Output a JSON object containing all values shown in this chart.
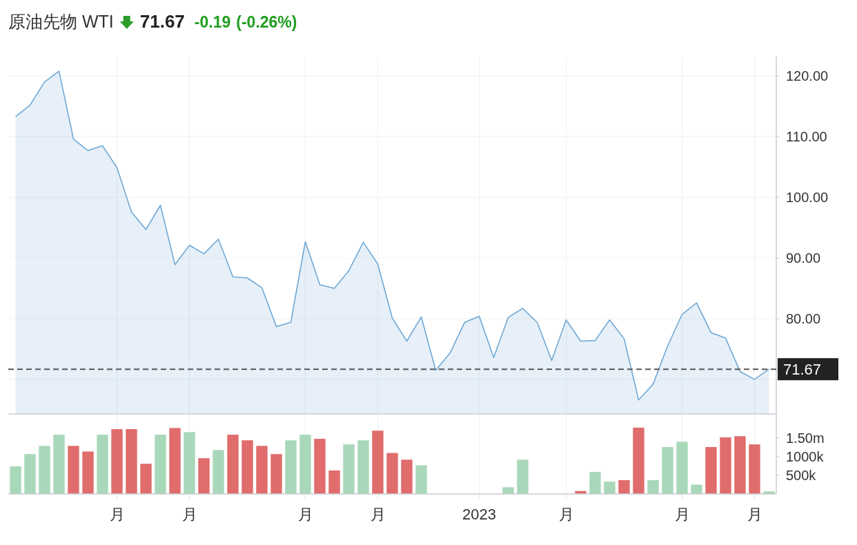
{
  "chart_data": [
    {
      "type": "area",
      "title": "原油先物 WTI",
      "annotations": [
        "71.67",
        "-0.19",
        "(-0.26%)"
      ],
      "categories": [
        null,
        null,
        null,
        null,
        null,
        null,
        null,
        null,
        null,
        null,
        null,
        null,
        null,
        null,
        null,
        null,
        null,
        null,
        null,
        null,
        null,
        null,
        null,
        null,
        null,
        null,
        null,
        null,
        null,
        null,
        null,
        null,
        null,
        null,
        null,
        null,
        null,
        null,
        null,
        null,
        null,
        null,
        null,
        null,
        null,
        null,
        null,
        null,
        null,
        null,
        null,
        null,
        null
      ],
      "values": [
        113.3,
        115.2,
        119.0,
        120.8,
        109.6,
        107.7,
        108.5,
        104.9,
        97.6,
        94.7,
        98.7,
        88.9,
        92.1,
        90.7,
        93.1,
        86.9,
        86.7,
        85.1,
        78.7,
        79.4,
        92.7,
        85.6,
        85.0,
        87.9,
        92.6,
        89.0,
        80.1,
        76.3,
        80.3,
        71.5,
        74.4,
        79.4,
        80.4,
        73.6,
        80.2,
        81.7,
        79.4,
        73.1,
        79.8,
        76.3,
        76.4,
        79.8,
        76.7,
        66.6,
        69.2,
        75.5,
        80.7,
        82.6,
        77.7,
        76.8,
        71.3,
        70.0,
        71.7
      ],
      "color": "#6fa8d6",
      "ylim": [
        64.3,
        123.2
      ],
      "yticks": [
        {
          "value": 70,
          "label": null
        },
        {
          "value": 80,
          "label": "80.00"
        },
        {
          "value": 90,
          "label": "90.00"
        },
        {
          "value": 100,
          "label": "100.00"
        },
        {
          "value": 110,
          "label": "110.00"
        },
        {
          "value": 120,
          "label": "120.00"
        }
      ],
      "tick_labels": "y",
      "grid": true,
      "ref_lines": [
        {
          "axis": "y",
          "value": 71.67,
          "label": "71.67",
          "color": "#555555",
          "line_style": "dashed"
        }
      ]
    },
    {
      "type": "bar",
      "categories": [
        null,
        null,
        null,
        null,
        null,
        null,
        null,
        "月",
        null,
        null,
        null,
        null,
        "月",
        null,
        null,
        null,
        null,
        null,
        null,
        null,
        "月",
        null,
        null,
        null,
        null,
        "月",
        null,
        null,
        null,
        null,
        null,
        null,
        "2023",
        null,
        null,
        null,
        null,
        null,
        "月",
        null,
        null,
        null,
        null,
        null,
        null,
        null,
        "月",
        null,
        null,
        null,
        null,
        "月",
        null
      ],
      "values": [
        740000,
        1070000,
        1290000,
        1590000,
        1290000,
        1140000,
        1590000,
        1740000,
        1740000,
        810000,
        1590000,
        1770000,
        1660000,
        960000,
        1180000,
        1590000,
        1440000,
        1290000,
        1070000,
        1440000,
        1590000,
        1480000,
        630000,
        1330000,
        1440000,
        1700000,
        1100000,
        920000,
        770000,
        null,
        null,
        null,
        null,
        null,
        180000,
        920000,
        null,
        null,
        null,
        80000,
        590000,
        330000,
        370000,
        1780000,
        370000,
        1260000,
        1400000,
        250000,
        1260000,
        1520000,
        1550000,
        1330000,
        70000
      ],
      "colors": [
        "#a8d8b9",
        "#a8d8b9",
        "#a8d8b9",
        "#a8d8b9",
        "#e06c6c",
        "#e06c6c",
        "#a8d8b9",
        "#e06c6c",
        "#e06c6c",
        "#e06c6c",
        "#a8d8b9",
        "#e06c6c",
        "#a8d8b9",
        "#e06c6c",
        "#a8d8b9",
        "#e06c6c",
        "#e06c6c",
        "#e06c6c",
        "#e06c6c",
        "#a8d8b9",
        "#a8d8b9",
        "#e06c6c",
        "#e06c6c",
        "#a8d8b9",
        "#a8d8b9",
        "#e06c6c",
        "#e06c6c",
        "#e06c6c",
        "#a8d8b9",
        null,
        null,
        null,
        null,
        null,
        "#a8d8b9",
        "#a8d8b9",
        null,
        null,
        null,
        "#e06c6c",
        "#a8d8b9",
        "#a8d8b9",
        "#e06c6c",
        "#e06c6c",
        "#a8d8b9",
        "#a8d8b9",
        "#a8d8b9",
        "#a8d8b9",
        "#e06c6c",
        "#e06c6c",
        "#e06c6c",
        "#e06c6c",
        "#a8d8b9"
      ],
      "ylim": [
        0,
        2130000
      ],
      "yticks": [
        {
          "value": 500000,
          "label": "500k"
        },
        {
          "value": 1000000,
          "label": "1000k"
        },
        {
          "value": 1500000,
          "label": "1.50m"
        }
      ],
      "grid": "x"
    }
  ]
}
